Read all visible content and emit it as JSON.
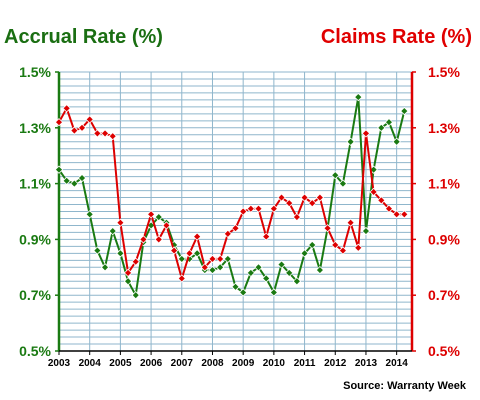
{
  "chart_data": {
    "type": "line",
    "title_left": "Accrual Rate (%)",
    "title_right": "Claims Rate (%)",
    "source": "Source: Warranty Week",
    "x_labels": [
      "2003",
      "2004",
      "2005",
      "2006",
      "2007",
      "2008",
      "2009",
      "2010",
      "2011",
      "2012",
      "2013",
      "2014"
    ],
    "y_left_ticks": [
      "1.5%",
      "1.3%",
      "1.1%",
      "0.9%",
      "0.7%",
      "0.5%"
    ],
    "y_right_ticks": [
      "1.5%",
      "1.3%",
      "1.1%",
      "0.9%",
      "0.7%",
      "0.5%"
    ],
    "ylim": [
      0.5,
      1.5
    ],
    "xlim": [
      2003.0,
      2014.5
    ],
    "grid": true,
    "colors": {
      "accrual": "#1a7a12",
      "claims": "#dd0000",
      "grid": "#8fb6cc",
      "left_axis": "#1a7a12",
      "right_axis": "#dd0000"
    },
    "series": [
      {
        "name": "Accrual Rate (%)",
        "axis": "left",
        "x": [
          2003.0,
          2003.25,
          2003.5,
          2003.75,
          2004.0,
          2004.25,
          2004.5,
          2004.75,
          2005.0,
          2005.25,
          2005.5,
          2005.75,
          2006.0,
          2006.25,
          2006.5,
          2006.75,
          2007.0,
          2007.25,
          2007.5,
          2007.75,
          2008.0,
          2008.25,
          2008.5,
          2008.75,
          2009.0,
          2009.25,
          2009.5,
          2009.75,
          2010.0,
          2010.25,
          2010.5,
          2010.75,
          2011.0,
          2011.25,
          2011.5,
          2011.75,
          2012.0,
          2012.25,
          2012.5,
          2012.75,
          2013.0,
          2013.25,
          2013.5,
          2013.75,
          2014.0,
          2014.25
        ],
        "y": [
          1.15,
          1.11,
          1.1,
          1.12,
          0.99,
          0.86,
          0.8,
          0.93,
          0.85,
          0.75,
          0.7,
          0.89,
          0.95,
          0.98,
          0.96,
          0.88,
          0.83,
          0.83,
          0.85,
          0.79,
          0.79,
          0.8,
          0.83,
          0.73,
          0.71,
          0.78,
          0.8,
          0.76,
          0.71,
          0.81,
          0.78,
          0.75,
          0.85,
          0.88,
          0.79,
          0.94,
          1.13,
          1.1,
          1.25,
          1.41,
          0.93,
          1.15,
          1.3,
          1.32,
          1.25,
          1.36
        ]
      },
      {
        "name": "Claims Rate (%)",
        "axis": "right",
        "x": [
          2003.0,
          2003.25,
          2003.5,
          2003.75,
          2004.0,
          2004.25,
          2004.5,
          2004.75,
          2005.0,
          2005.25,
          2005.5,
          2005.75,
          2006.0,
          2006.25,
          2006.5,
          2006.75,
          2007.0,
          2007.25,
          2007.5,
          2007.75,
          2008.0,
          2008.25,
          2008.5,
          2008.75,
          2009.0,
          2009.25,
          2009.5,
          2009.75,
          2010.0,
          2010.25,
          2010.5,
          2010.75,
          2011.0,
          2011.25,
          2011.5,
          2011.75,
          2012.0,
          2012.25,
          2012.5,
          2012.75,
          2013.0,
          2013.25,
          2013.5,
          2013.75,
          2014.0,
          2014.25
        ],
        "y": [
          1.32,
          1.37,
          1.29,
          1.3,
          1.33,
          1.28,
          1.28,
          1.27,
          0.96,
          0.78,
          0.82,
          0.9,
          0.99,
          0.9,
          0.95,
          0.86,
          0.76,
          0.85,
          0.91,
          0.8,
          0.83,
          0.83,
          0.92,
          0.94,
          1.0,
          1.01,
          1.01,
          0.91,
          1.01,
          1.05,
          1.03,
          0.98,
          1.05,
          1.03,
          1.05,
          0.94,
          0.88,
          0.86,
          0.96,
          0.87,
          1.28,
          1.07,
          1.04,
          1.01,
          0.99,
          0.99
        ]
      }
    ]
  }
}
